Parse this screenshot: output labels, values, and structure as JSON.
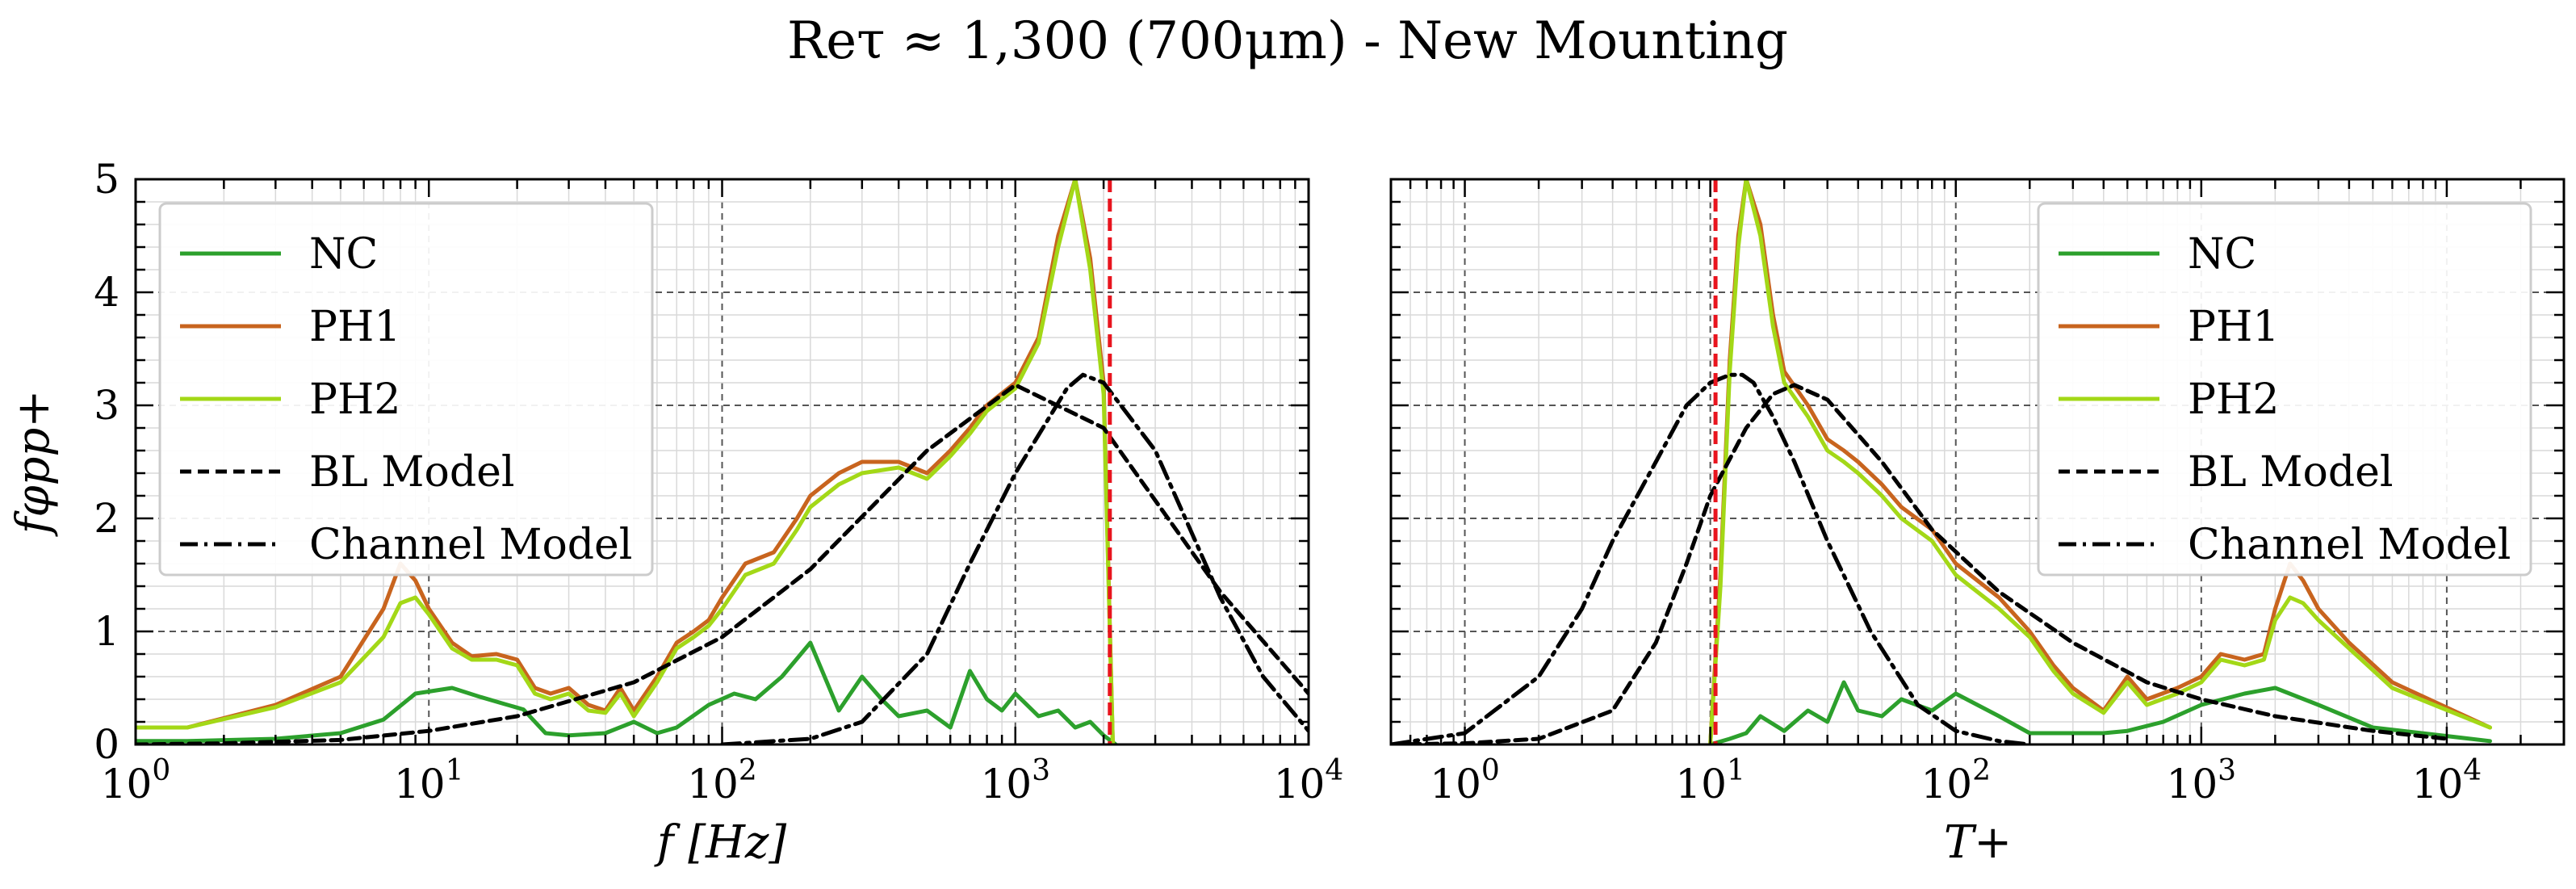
{
  "figure": {
    "title": "Reτ ≈ 1,300 (700μm) - New Mounting"
  },
  "colors": {
    "NC": "#2ca02c",
    "PH1": "#c8641e",
    "PH2": "#a3d817",
    "BL Model": "#000000",
    "Channel Model": "#000000",
    "cutoff": "#e8141e"
  },
  "legend_entries": [
    {
      "label": "NC",
      "style": "solid",
      "color": "#2ca02c"
    },
    {
      "label": "PH1",
      "style": "solid",
      "color": "#c8641e"
    },
    {
      "label": "PH2",
      "style": "solid",
      "color": "#a3d817"
    },
    {
      "label": "BL Model",
      "style": "dashed",
      "color": "#000000"
    },
    {
      "label": "Channel Model",
      "style": "dashdot",
      "color": "#000000"
    }
  ],
  "chart_data": [
    {
      "type": "line",
      "title": "",
      "xlabel": "f [Hz]",
      "ylabel": "fφpp+",
      "xscale": "log",
      "xlim": [
        1,
        10000
      ],
      "ylim": [
        0,
        5
      ],
      "xticks": [
        1,
        10,
        100,
        1000,
        10000
      ],
      "xtick_labels": [
        "10^0",
        "10^1",
        "10^2",
        "10^3",
        "10^4"
      ],
      "yticks": [
        0,
        1,
        2,
        3,
        4,
        5
      ],
      "grid": true,
      "legend_placement": "top-left",
      "cutoff_x": 2100,
      "series": [
        {
          "name": "NC",
          "x": [
            1,
            1.5,
            3,
            5,
            7,
            9,
            12,
            15,
            18,
            21,
            25,
            30,
            40,
            50,
            60,
            70,
            90,
            110,
            130,
            160,
            200,
            250,
            300,
            350,
            400,
            500,
            600,
            700,
            800,
            900,
            1000,
            1200,
            1400,
            1600,
            1800,
            2000,
            2200
          ],
          "y": [
            0.03,
            0.03,
            0.05,
            0.1,
            0.22,
            0.45,
            0.5,
            0.42,
            0.36,
            0.31,
            0.1,
            0.08,
            0.1,
            0.2,
            0.1,
            0.15,
            0.35,
            0.45,
            0.4,
            0.6,
            0.9,
            0.3,
            0.6,
            0.4,
            0.25,
            0.3,
            0.15,
            0.65,
            0.4,
            0.3,
            0.45,
            0.25,
            0.3,
            0.15,
            0.2,
            0.08,
            0.0
          ]
        },
        {
          "name": "PH1",
          "x": [
            1,
            1.5,
            3,
            5,
            7,
            8,
            9,
            10,
            12,
            14,
            17,
            20,
            23,
            26,
            30,
            35,
            40,
            45,
            50,
            60,
            70,
            80,
            90,
            100,
            120,
            150,
            180,
            200,
            250,
            300,
            400,
            500,
            600,
            700,
            800,
            1000,
            1200,
            1400,
            1600,
            1800,
            2000,
            2150
          ],
          "y": [
            0.15,
            0.15,
            0.35,
            0.6,
            1.2,
            1.6,
            1.45,
            1.2,
            0.9,
            0.78,
            0.8,
            0.75,
            0.5,
            0.45,
            0.5,
            0.35,
            0.3,
            0.5,
            0.3,
            0.6,
            0.9,
            1.0,
            1.1,
            1.3,
            1.6,
            1.7,
            2.0,
            2.2,
            2.4,
            2.5,
            2.5,
            2.4,
            2.6,
            2.8,
            3.0,
            3.2,
            3.6,
            4.5,
            5.0,
            4.3,
            3.2,
            0.0
          ]
        },
        {
          "name": "PH2",
          "x": [
            1,
            1.5,
            3,
            5,
            7,
            8,
            9,
            10,
            12,
            14,
            17,
            20,
            23,
            26,
            30,
            35,
            40,
            45,
            50,
            60,
            70,
            80,
            90,
            100,
            120,
            150,
            180,
            200,
            250,
            300,
            400,
            500,
            600,
            700,
            800,
            1000,
            1200,
            1400,
            1600,
            1800,
            2000,
            2150
          ],
          "y": [
            0.15,
            0.15,
            0.33,
            0.55,
            0.95,
            1.25,
            1.3,
            1.15,
            0.85,
            0.75,
            0.75,
            0.7,
            0.45,
            0.4,
            0.45,
            0.3,
            0.28,
            0.45,
            0.25,
            0.55,
            0.85,
            0.95,
            1.05,
            1.2,
            1.5,
            1.6,
            1.9,
            2.1,
            2.3,
            2.4,
            2.45,
            2.35,
            2.55,
            2.75,
            2.95,
            3.15,
            3.55,
            4.4,
            5.0,
            4.2,
            3.1,
            0.0
          ]
        },
        {
          "name": "BL Model",
          "x": [
            1,
            2,
            5,
            10,
            20,
            50,
            100,
            200,
            500,
            1000,
            2000,
            5000,
            10000
          ],
          "y": [
            0.0,
            0.01,
            0.04,
            0.12,
            0.25,
            0.55,
            0.95,
            1.55,
            2.6,
            3.18,
            2.8,
            1.35,
            0.45
          ]
        },
        {
          "name": "Channel Model",
          "x": [
            100,
            200,
            300,
            500,
            700,
            1000,
            1500,
            1700,
            2000,
            3000,
            5000,
            7000,
            10000
          ],
          "y": [
            0.0,
            0.05,
            0.2,
            0.8,
            1.6,
            2.4,
            3.15,
            3.27,
            3.2,
            2.6,
            1.3,
            0.6,
            0.12
          ]
        }
      ]
    },
    {
      "type": "line",
      "title": "",
      "xlabel": "T+",
      "ylabel": "",
      "xscale": "log",
      "xlim": [
        0.5,
        30000
      ],
      "ylim": [
        0,
        5
      ],
      "xticks": [
        1,
        10,
        100,
        1000,
        10000
      ],
      "xtick_labels": [
        "10^0",
        "10^1",
        "10^2",
        "10^3",
        "10^4"
      ],
      "yticks": [
        0,
        1,
        2,
        3,
        4,
        5
      ],
      "grid": true,
      "legend_placement": "top-right",
      "cutoff_x": 10.5,
      "series": [
        {
          "name": "NC",
          "x": [
            10,
            12,
            14,
            16,
            20,
            25,
            30,
            35,
            40,
            50,
            60,
            80,
            100,
            150,
            200,
            300,
            400,
            500,
            700,
            1000,
            1500,
            2000,
            3000,
            5000,
            15000
          ],
          "y": [
            0.0,
            0.05,
            0.1,
            0.25,
            0.12,
            0.3,
            0.2,
            0.55,
            0.3,
            0.25,
            0.4,
            0.3,
            0.45,
            0.25,
            0.1,
            0.1,
            0.1,
            0.12,
            0.2,
            0.35,
            0.45,
            0.5,
            0.35,
            0.15,
            0.03
          ]
        },
        {
          "name": "PH1",
          "x": [
            10,
            11,
            12,
            13,
            14,
            16,
            18,
            20,
            25,
            30,
            35,
            40,
            50,
            60,
            80,
            100,
            150,
            200,
            250,
            300,
            400,
            500,
            600,
            800,
            1000,
            1200,
            1500,
            1800,
            2000,
            2300,
            2600,
            3000,
            4000,
            6000,
            15000
          ],
          "y": [
            0.0,
            1.5,
            3.4,
            4.5,
            5.0,
            4.6,
            3.8,
            3.3,
            3.0,
            2.7,
            2.6,
            2.5,
            2.3,
            2.1,
            1.9,
            1.6,
            1.3,
            1.0,
            0.7,
            0.5,
            0.3,
            0.6,
            0.4,
            0.5,
            0.6,
            0.8,
            0.75,
            0.8,
            1.2,
            1.6,
            1.45,
            1.2,
            0.9,
            0.55,
            0.15
          ]
        },
        {
          "name": "PH2",
          "x": [
            10,
            11,
            12,
            13,
            14,
            16,
            18,
            20,
            25,
            30,
            35,
            40,
            50,
            60,
            80,
            100,
            150,
            200,
            250,
            300,
            400,
            500,
            600,
            800,
            1000,
            1200,
            1500,
            1800,
            2000,
            2300,
            2600,
            3000,
            4000,
            6000,
            15000
          ],
          "y": [
            0.0,
            1.4,
            3.3,
            4.4,
            5.0,
            4.5,
            3.7,
            3.2,
            2.9,
            2.6,
            2.5,
            2.4,
            2.2,
            2.0,
            1.8,
            1.5,
            1.2,
            0.95,
            0.65,
            0.45,
            0.28,
            0.55,
            0.35,
            0.45,
            0.55,
            0.75,
            0.7,
            0.75,
            1.1,
            1.3,
            1.25,
            1.1,
            0.85,
            0.5,
            0.15
          ]
        },
        {
          "name": "BL Model",
          "x": [
            0.5,
            1,
            2,
            4,
            6,
            8,
            10,
            14,
            18,
            22,
            30,
            50,
            80,
            150,
            300,
            600,
            1000,
            2000,
            5000,
            10000
          ],
          "y": [
            0.0,
            0.01,
            0.05,
            0.3,
            0.9,
            1.6,
            2.2,
            2.8,
            3.1,
            3.18,
            3.05,
            2.5,
            1.9,
            1.35,
            0.9,
            0.55,
            0.4,
            0.25,
            0.12,
            0.05
          ]
        },
        {
          "name": "Channel Model",
          "x": [
            0.5,
            1,
            2,
            3,
            4,
            6,
            8,
            10,
            12,
            13.5,
            15,
            18,
            22,
            30,
            45,
            70,
            100,
            150,
            200
          ],
          "y": [
            0.0,
            0.1,
            0.6,
            1.2,
            1.8,
            2.5,
            3.0,
            3.2,
            3.27,
            3.27,
            3.2,
            2.9,
            2.5,
            1.8,
            1.0,
            0.35,
            0.12,
            0.03,
            0.0
          ]
        }
      ]
    }
  ]
}
